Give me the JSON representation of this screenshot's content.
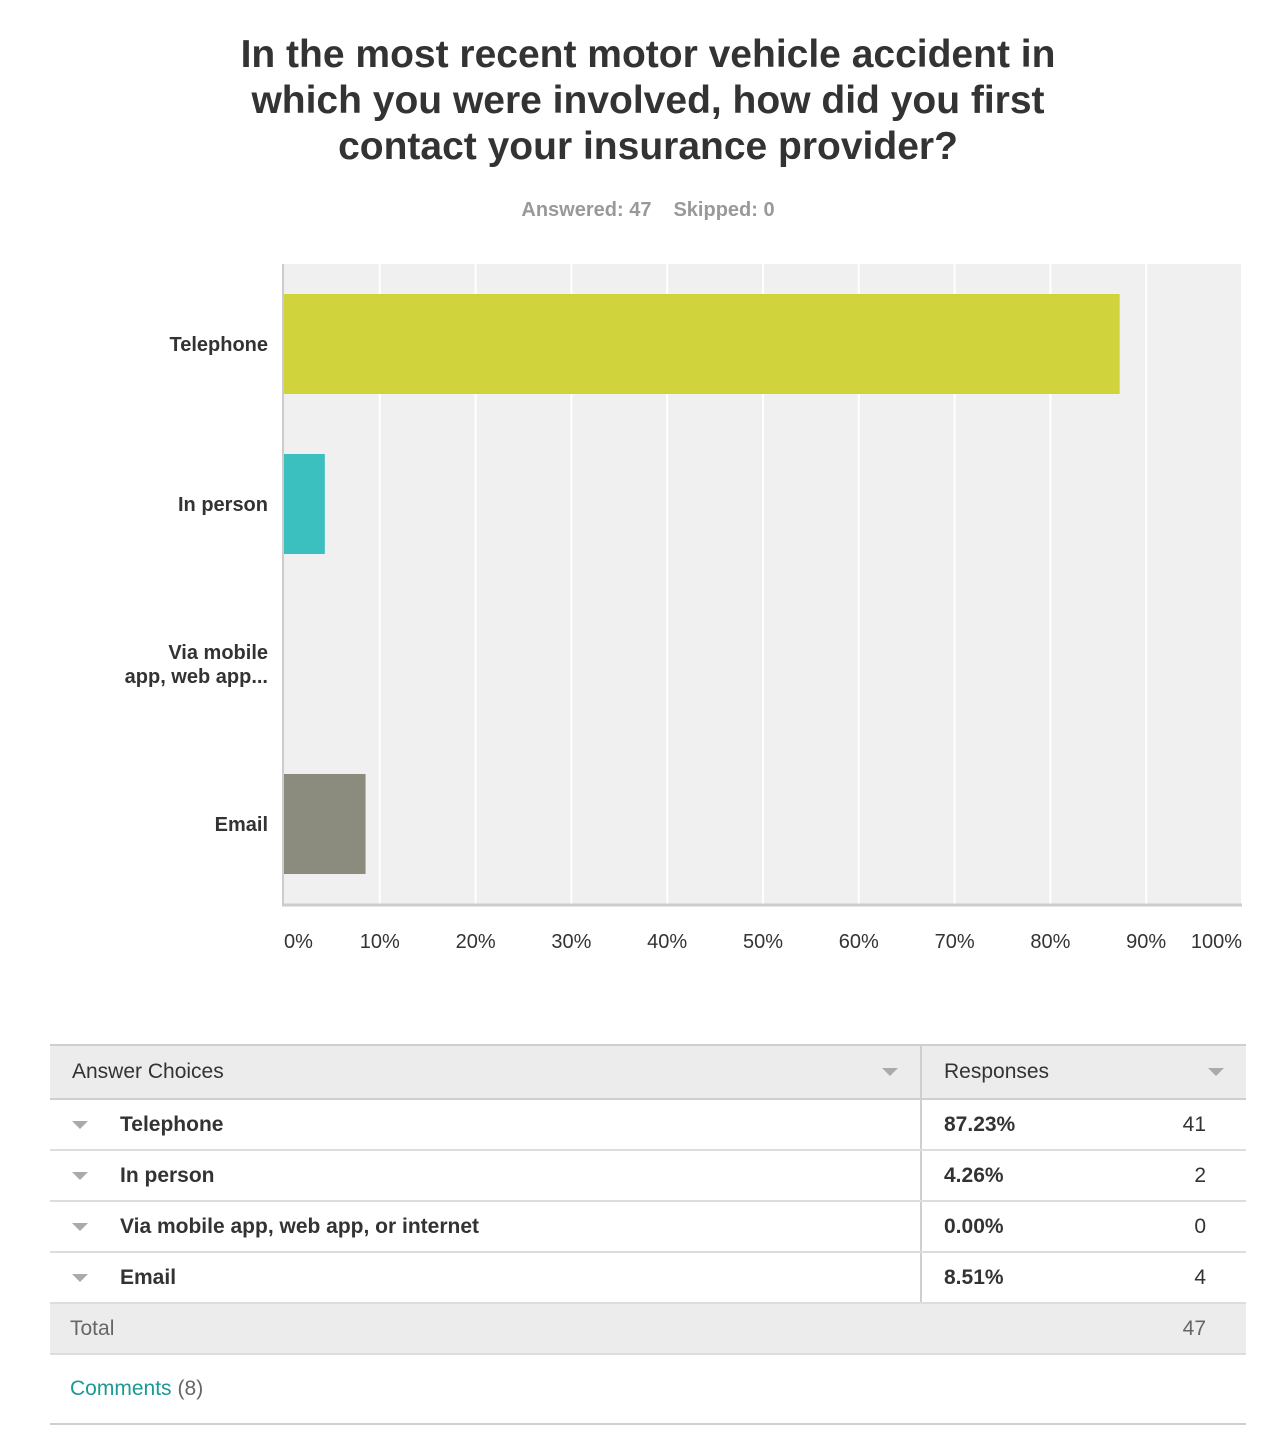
{
  "question": {
    "title": "In the most recent motor vehicle accident in\nwhich you were involved, how did you first\ncontact your insurance provider?",
    "answered_label": "Answered: 47",
    "skipped_label": "Skipped: 0"
  },
  "chart_data": {
    "type": "bar",
    "orientation": "horizontal",
    "categories": [
      "Telephone",
      "In person",
      "Via mobile app, web app...",
      "Email"
    ],
    "category_display": [
      [
        "Telephone"
      ],
      [
        "In person"
      ],
      [
        "Via mobile",
        "app, web app..."
      ],
      [
        "Email"
      ]
    ],
    "values": [
      87.23,
      4.26,
      0.0,
      8.51
    ],
    "colors": [
      "#d0d33c",
      "#3cbfbf",
      "#7a86c2",
      "#8b8b7e"
    ],
    "xlim": [
      0,
      100
    ],
    "xticks": [
      0,
      10,
      20,
      30,
      40,
      50,
      60,
      70,
      80,
      90,
      100
    ],
    "xtick_labels": [
      "0%",
      "10%",
      "20%",
      "30%",
      "40%",
      "50%",
      "60%",
      "70%",
      "80%",
      "90%",
      "100%"
    ],
    "grid": true,
    "title": "",
    "xlabel": "",
    "ylabel": ""
  },
  "table": {
    "header_choices": "Answer Choices",
    "header_responses": "Responses",
    "rows": [
      {
        "choice": "Telephone",
        "percent": "87.23%",
        "count": "41"
      },
      {
        "choice": "In person",
        "percent": "4.26%",
        "count": "2"
      },
      {
        "choice": "Via mobile app, web app, or internet",
        "percent": "0.00%",
        "count": "0"
      },
      {
        "choice": "Email",
        "percent": "8.51%",
        "count": "4"
      }
    ],
    "total_label": "Total",
    "total_count": "47"
  },
  "comments": {
    "link_label": "Comments",
    "count_label": "(8)"
  }
}
